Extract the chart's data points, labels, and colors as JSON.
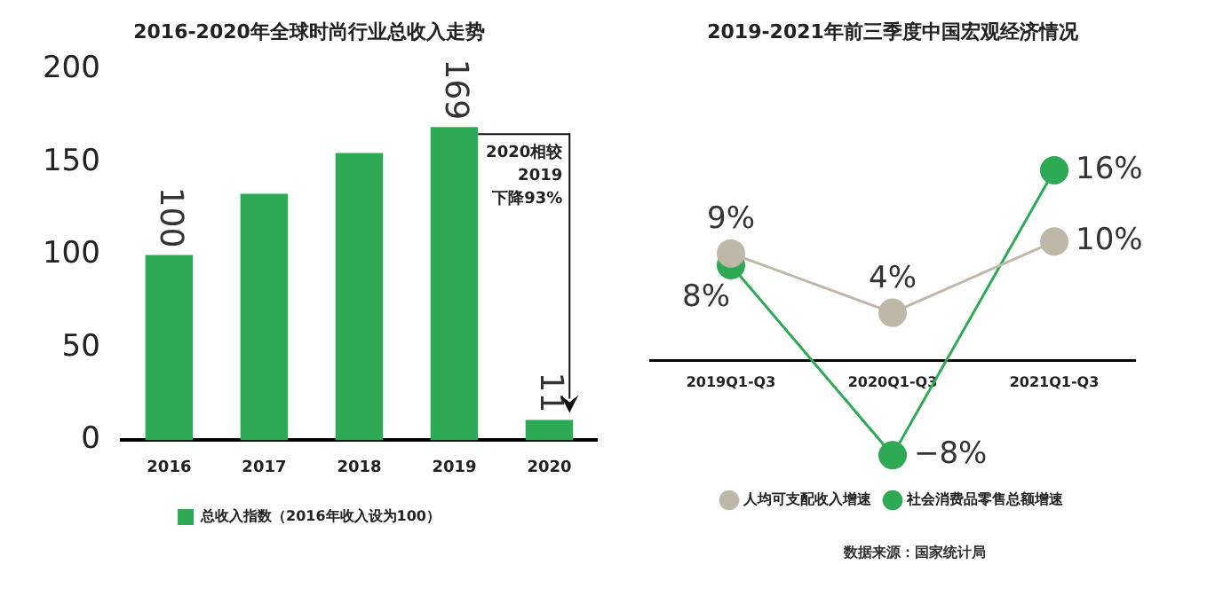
{
  "chart_data": [
    {
      "type": "bar",
      "title": "2016-2020年全球时尚行业总收入走势",
      "categories": [
        "2016",
        "2017",
        "2018",
        "2019",
        "2020"
      ],
      "series": [
        {
          "name": "总收入指数（2016年收入设为100）",
          "color": "#2eaa55",
          "values": [
            100,
            133,
            155,
            169,
            11
          ],
          "value_labels": [
            "100",
            null,
            null,
            "169",
            "11"
          ]
        }
      ],
      "ylim": [
        0,
        200
      ],
      "yticks": [
        0,
        50,
        100,
        150,
        200
      ],
      "grid": false,
      "legend": "bottom",
      "annotations": [
        {
          "text": "2020相较\n2019\n下降93%",
          "x": "2019",
          "y": 169
        }
      ]
    },
    {
      "type": "line",
      "title": "2019-2021年前三季度中国宏观经济情况",
      "categories": [
        "2019Q1-Q3",
        "2020Q1-Q3",
        "2021Q1-Q3"
      ],
      "series": [
        {
          "name": "人均可支配收入增速",
          "color": "#bfb8a8",
          "values": [
            9,
            4,
            10
          ],
          "value_labels": [
            "9%",
            "4%",
            "10%"
          ]
        },
        {
          "name": "社会消费品零售总额增速",
          "color": "#2eaa55",
          "values": [
            8,
            -8,
            16
          ],
          "value_labels": [
            "8%",
            "−8%",
            "16%"
          ]
        }
      ],
      "marker": "circle",
      "grid": false,
      "legend": "bottom",
      "tick_labels": "x",
      "annotations": [
        "数据来源：国家统计局"
      ]
    }
  ]
}
